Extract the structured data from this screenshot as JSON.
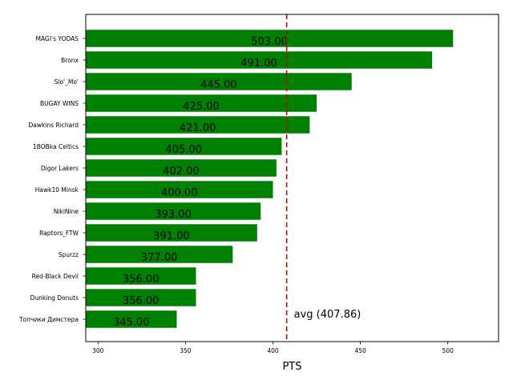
{
  "chart_data": {
    "type": "bar",
    "orientation": "horizontal",
    "categories": [
      "MAGI's YODAS",
      "Bronx",
      "Slo'_Mo'",
      "BUGAY WINS",
      "Dawkins Richard",
      "1BOBka Celtics",
      "Digor Lakers",
      "Hawk10 Minsk",
      "NikiNine",
      "Raptors_FTW",
      "Spurzz",
      "Red-Black Devil",
      "Dunking Donuts",
      "Топчики Димстера"
    ],
    "values": [
      503,
      491,
      445,
      425,
      421,
      405,
      402,
      400,
      393,
      391,
      377,
      356,
      356,
      345
    ],
    "value_labels": [
      "503.00",
      "491.00",
      "445.00",
      "425.00",
      "421.00",
      "405.00",
      "402.00",
      "400.00",
      "393.00",
      "391.00",
      "377.00",
      "356.00",
      "356.00",
      "345.00"
    ],
    "xlabel": "PTS",
    "xlim": [
      293,
      529
    ],
    "xticks": [
      300,
      350,
      400,
      450,
      500
    ],
    "bar_color": "#008000",
    "average": {
      "value": 407.86,
      "label": "avg (407.86)",
      "color": "#cc0000",
      "style": "dashed"
    },
    "grid": false
  }
}
